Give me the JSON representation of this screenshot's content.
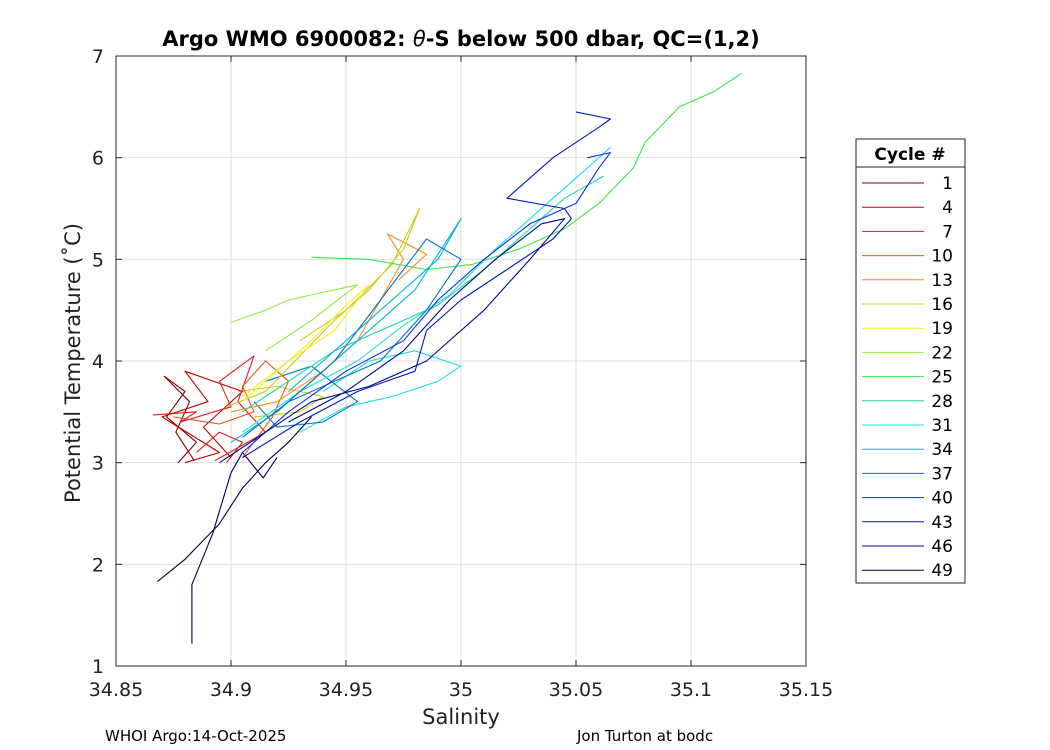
{
  "chart_data": {
    "type": "line",
    "title": "Argo WMO 6900082: θ-S below 500 dbar,  QC=(1,2)",
    "title_parts": {
      "prefix": "Argo WMO 6900082: ",
      "theta": "θ",
      "suffix": "-S below 500 dbar,  QC=(1,2)"
    },
    "xlabel": "Salinity",
    "ylabel": "Potential Temperature (˚C)",
    "xlim": [
      34.85,
      35.15
    ],
    "ylim": [
      1,
      7
    ],
    "xticks": [
      34.85,
      34.9,
      34.95,
      35,
      35.05,
      35.1,
      35.15
    ],
    "xtick_labels": [
      "34.85",
      "34.9",
      "34.95",
      "35",
      "35.05",
      "35.1",
      "35.15"
    ],
    "yticks": [
      1,
      2,
      3,
      4,
      5,
      6,
      7
    ],
    "ytick_labels": [
      "1",
      "2",
      "3",
      "4",
      "5",
      "6",
      "7"
    ],
    "grid": true,
    "legend_title": "Cycle #",
    "legend_position": "right-outside",
    "series": [
      {
        "name": "1",
        "color": "#800000",
        "points": [
          [
            34.877,
            3.0
          ],
          [
            34.885,
            3.2
          ],
          [
            34.872,
            3.45
          ],
          [
            34.88,
            3.7
          ],
          [
            34.871,
            3.85
          ],
          [
            34.882,
            3.6
          ],
          [
            34.876,
            3.3
          ],
          [
            34.884,
            3.02
          ]
        ]
      },
      {
        "name": "4",
        "color": "#c00000",
        "points": [
          [
            34.88,
            3.0
          ],
          [
            34.895,
            3.1
          ],
          [
            34.87,
            3.45
          ],
          [
            34.89,
            3.6
          ],
          [
            34.88,
            3.9
          ],
          [
            34.905,
            3.7
          ],
          [
            34.888,
            3.35
          ],
          [
            34.9,
            3.05
          ]
        ]
      },
      {
        "name": "7",
        "color": "#e31a1c",
        "points": [
          [
            34.866,
            3.47
          ],
          [
            34.885,
            3.5
          ],
          [
            34.878,
            3.4
          ],
          [
            34.9,
            3.55
          ],
          [
            34.895,
            3.8
          ],
          [
            34.91,
            4.05
          ],
          [
            34.903,
            3.6
          ],
          [
            34.915,
            3.3
          ],
          [
            34.893,
            3.02
          ]
        ]
      },
      {
        "name": "10",
        "color": "#f4511e",
        "points": [
          [
            34.875,
            3.45
          ],
          [
            34.895,
            3.38
          ],
          [
            34.91,
            3.5
          ],
          [
            34.905,
            3.75
          ],
          [
            34.915,
            4.0
          ],
          [
            34.925,
            3.8
          ],
          [
            34.918,
            3.45
          ],
          [
            34.905,
            3.05
          ]
        ]
      },
      {
        "name": "13",
        "color": "#ff8c1a",
        "points": [
          [
            34.9,
            3.5
          ],
          [
            34.92,
            3.6
          ],
          [
            34.94,
            3.9
          ],
          [
            34.955,
            4.2
          ],
          [
            34.965,
            4.6
          ],
          [
            34.975,
            5.0
          ],
          [
            34.968,
            5.25
          ],
          [
            34.985,
            5.05
          ],
          [
            34.973,
            4.8
          ]
        ]
      },
      {
        "name": "16",
        "color": "#d4c619",
        "points": [
          [
            34.898,
            3.55
          ],
          [
            34.915,
            3.7
          ],
          [
            34.93,
            4.05
          ],
          [
            34.945,
            4.4
          ],
          [
            34.96,
            4.7
          ],
          [
            34.975,
            5.1
          ],
          [
            34.982,
            5.5
          ],
          [
            34.97,
            4.95
          ],
          [
            34.95,
            4.5
          ],
          [
            34.93,
            4.2
          ]
        ]
      },
      {
        "name": "19",
        "color": "#f0f020",
        "points": [
          [
            34.905,
            3.6
          ],
          [
            34.92,
            3.9
          ],
          [
            34.935,
            4.2
          ],
          [
            34.95,
            4.55
          ],
          [
            34.96,
            4.75
          ],
          [
            34.945,
            4.3
          ],
          [
            34.925,
            4.0
          ],
          [
            34.905,
            3.65
          ]
        ]
      },
      {
        "name": "22",
        "color": "#90ee40",
        "points": [
          [
            34.9,
            4.38
          ],
          [
            34.915,
            4.5
          ],
          [
            34.925,
            4.6
          ],
          [
            34.935,
            4.65
          ],
          [
            34.945,
            4.7
          ],
          [
            34.955,
            4.75
          ],
          [
            34.935,
            4.4
          ],
          [
            34.915,
            4.1
          ]
        ]
      },
      {
        "name": "25",
        "color": "#3ce645",
        "points": [
          [
            34.935,
            5.02
          ],
          [
            34.96,
            5.0
          ],
          [
            34.985,
            4.9
          ],
          [
            35.005,
            4.95
          ],
          [
            35.025,
            5.1
          ],
          [
            35.045,
            5.3
          ],
          [
            35.06,
            5.55
          ],
          [
            35.075,
            5.9
          ],
          [
            35.08,
            6.15
          ],
          [
            35.095,
            6.5
          ],
          [
            35.11,
            6.65
          ],
          [
            35.122,
            6.83
          ]
        ]
      },
      {
        "name": "28",
        "color": "#20d6a0",
        "points": [
          [
            34.905,
            3.5
          ],
          [
            34.925,
            3.8
          ],
          [
            34.945,
            4.1
          ],
          [
            34.965,
            4.3
          ],
          [
            34.99,
            4.55
          ],
          [
            35.01,
            4.9
          ],
          [
            35.03,
            5.3
          ],
          [
            35.045,
            5.6
          ],
          [
            35.062,
            5.82
          ]
        ]
      },
      {
        "name": "31",
        "color": "#1ee0e0",
        "points": [
          [
            34.905,
            3.3
          ],
          [
            34.93,
            3.7
          ],
          [
            34.955,
            4.0
          ],
          [
            34.975,
            4.35
          ],
          [
            34.995,
            4.65
          ],
          [
            35.015,
            5.1
          ],
          [
            35.04,
            5.6
          ],
          [
            35.055,
            5.9
          ],
          [
            35.065,
            6.1
          ]
        ]
      },
      {
        "name": "34",
        "color": "#00b4e6",
        "points": [
          [
            34.9,
            3.2
          ],
          [
            34.92,
            3.5
          ],
          [
            34.94,
            3.9
          ],
          [
            34.96,
            4.3
          ],
          [
            34.98,
            4.7
          ],
          [
            35.0,
            5.4
          ],
          [
            34.99,
            5.0
          ],
          [
            34.97,
            4.6
          ],
          [
            34.95,
            4.2
          ],
          [
            34.925,
            3.7
          ]
        ]
      },
      {
        "name": "37",
        "color": "#0075c8",
        "points": [
          [
            34.905,
            3.25
          ],
          [
            34.925,
            3.6
          ],
          [
            34.945,
            3.8
          ],
          [
            34.965,
            4.0
          ],
          [
            34.985,
            4.5
          ],
          [
            35.0,
            5.0
          ],
          [
            34.985,
            5.2
          ],
          [
            34.965,
            4.6
          ],
          [
            34.945,
            4.0
          ],
          [
            34.92,
            3.5
          ]
        ]
      },
      {
        "name": "40",
        "color": "#0a33d8",
        "points": [
          [
            34.905,
            3.1
          ],
          [
            34.925,
            3.5
          ],
          [
            34.95,
            3.9
          ],
          [
            34.975,
            4.2
          ],
          [
            34.99,
            4.6
          ],
          [
            35.01,
            5.0
          ],
          [
            35.03,
            5.35
          ],
          [
            35.05,
            5.55
          ],
          [
            35.06,
            5.9
          ],
          [
            35.065,
            6.05
          ],
          [
            35.055,
            6.0
          ]
        ]
      },
      {
        "name": "43",
        "color": "#001ab4",
        "points": [
          [
            34.905,
            3.05
          ],
          [
            34.93,
            3.4
          ],
          [
            34.955,
            3.7
          ],
          [
            34.98,
            3.9
          ],
          [
            34.985,
            4.3
          ],
          [
            35.0,
            4.6
          ],
          [
            35.02,
            4.9
          ],
          [
            35.04,
            5.2
          ],
          [
            35.048,
            5.4
          ],
          [
            35.045,
            5.5
          ],
          [
            35.02,
            5.6
          ],
          [
            35.04,
            6.0
          ],
          [
            35.06,
            6.3
          ],
          [
            35.065,
            6.38
          ],
          [
            35.05,
            6.45
          ]
        ]
      },
      {
        "name": "46",
        "color": "#000c8c",
        "points": [
          [
            34.895,
            3.0
          ],
          [
            34.915,
            3.3
          ],
          [
            34.935,
            3.6
          ],
          [
            34.96,
            3.75
          ],
          [
            34.985,
            4.0
          ],
          [
            35.01,
            4.5
          ],
          [
            35.03,
            5.0
          ],
          [
            35.045,
            5.4
          ],
          [
            35.035,
            5.35
          ],
          [
            35.015,
            5.0
          ],
          [
            34.995,
            4.6
          ],
          [
            34.975,
            4.1
          ],
          [
            34.95,
            3.7
          ],
          [
            34.925,
            3.4
          ]
        ]
      },
      {
        "name": "49",
        "color": "#00004a",
        "points": [
          [
            34.868,
            1.83
          ],
          [
            34.88,
            2.05
          ],
          [
            34.895,
            2.4
          ],
          [
            34.905,
            2.75
          ],
          [
            34.915,
            3.0
          ],
          [
            34.925,
            3.2
          ],
          [
            34.935,
            3.45
          ]
        ]
      }
    ],
    "extra_traces": [
      {
        "color": "#00004a",
        "points": [
          [
            34.883,
            1.22
          ],
          [
            34.883,
            1.8
          ],
          [
            34.892,
            2.3
          ],
          [
            34.9,
            2.9
          ],
          [
            34.905,
            3.1
          ],
          [
            34.914,
            2.85
          ],
          [
            34.92,
            3.05
          ]
        ]
      },
      {
        "color": "#1ee0e0",
        "points": [
          [
            34.93,
            3.3
          ],
          [
            34.95,
            3.55
          ],
          [
            34.97,
            3.65
          ],
          [
            34.99,
            3.8
          ],
          [
            35.0,
            3.95
          ],
          [
            34.98,
            4.1
          ],
          [
            34.96,
            4.0
          ],
          [
            34.94,
            3.7
          ]
        ]
      },
      {
        "color": "#d4c619",
        "points": [
          [
            34.903,
            3.7
          ],
          [
            34.92,
            3.75
          ],
          [
            34.94,
            3.65
          ],
          [
            34.93,
            3.5
          ],
          [
            34.91,
            3.45
          ]
        ]
      },
      {
        "color": "#0075c8",
        "points": [
          [
            34.915,
            3.8
          ],
          [
            34.935,
            3.95
          ],
          [
            34.955,
            3.6
          ],
          [
            34.94,
            3.4
          ],
          [
            34.92,
            3.35
          ],
          [
            34.91,
            3.6
          ]
        ]
      },
      {
        "color": "#e31a1c",
        "points": [
          [
            34.885,
            3.1
          ],
          [
            34.895,
            3.3
          ],
          [
            34.905,
            3.2
          ],
          [
            34.898,
            3.0
          ]
        ]
      }
    ]
  },
  "footer": {
    "left": "WHOI Argo:14-Oct-2025",
    "right": "Jon Turton at bodc"
  }
}
